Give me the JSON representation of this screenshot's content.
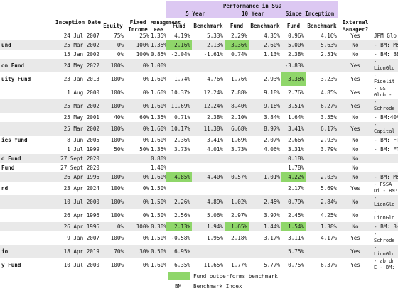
{
  "header": {
    "performance_title": "Performance in SGD",
    "periods": [
      "5 Year",
      "10 Year",
      "Since Inception"
    ],
    "columns": {
      "inception": "Inception Date",
      "equity": "Equity",
      "fixed_income": "Fixed Income",
      "mgmt_fee": "Management Fee",
      "fund": "Fund",
      "benchmark": "Benchmark",
      "external": "External Manager?"
    }
  },
  "rows": [
    {
      "name": "",
      "date": "24 Jul 2007",
      "eq": "75%",
      "fi": "25%",
      "fee": "1.35%",
      "f5": "4.19%",
      "b5": "5.33%",
      "f10": "2.29%",
      "b10": "4.35%",
      "fs": "0.96%",
      "bs": "4.16%",
      "ext": "Yes",
      "bm": "JPM Glo"
    },
    {
      "name": "und",
      "date": "25 Mar 2002",
      "eq": "0%",
      "fi": "100%",
      "fee": "1.35%",
      "f5": "2.16%",
      "b5": "2.13%",
      "f10": "3.36%",
      "b10": "2.60%",
      "fs": "5.00%",
      "bs": "5.63%",
      "ext": "No",
      "bm": "- BM: MSC"
    },
    {
      "name": "",
      "date": "15 Jan 2002",
      "eq": "0%",
      "fi": "100%",
      "fee": "0.85%",
      "f5": "-2.04%",
      "b5": "-1.61%",
      "f10": "0.74%",
      "b10": "1.13%",
      "fs": "2.38%",
      "bs": "2.51%",
      "ext": "No",
      "bm": "- BM: BB"
    },
    {
      "name": "on Fund",
      "date": "24 May 2022",
      "eq": "100%",
      "fi": "0%",
      "fee": "1.00%",
      "f5": "",
      "b5": "",
      "f10": "",
      "b10": "",
      "fs": "-3.83%",
      "bs": "",
      "ext": "Yes",
      "bm": "- LionGlo Innovatio"
    },
    {
      "name": "uity Fund",
      "date": "23 Jan 2013",
      "eq": "100%",
      "fi": "0%",
      "fee": "1.60%",
      "f5": "1.74%",
      "b5": "4.76%",
      "f10": "1.76%",
      "b10": "2.93%",
      "fs": "3.38%",
      "bs": "3.23%",
      "ext": "Yes",
      "bm": "- Fidelit - BM: MSC"
    },
    {
      "name": "",
      "date": "1 Aug 2000",
      "eq": "100%",
      "fi": "0%",
      "fee": "1.60%",
      "f5": "10.37%",
      "b5": "12.24%",
      "f10": "7.88%",
      "b10": "9.18%",
      "fs": "2.76%",
      "bs": "4.85%",
      "ext": "Yes",
      "bm": "- GS Glob - BM: MSC"
    },
    {
      "name": "",
      "date": "25 Mar 2002",
      "eq": "100%",
      "fi": "0%",
      "fee": "1.60%",
      "f5": "11.69%",
      "b5": "12.24%",
      "f10": "8.40%",
      "b10": "9.18%",
      "fs": "3.51%",
      "bs": "6.27%",
      "ext": "Yes",
      "bm": "- Schrode - BM: MSC"
    },
    {
      "name": "",
      "date": "25 May 2001",
      "eq": "40%",
      "fi": "60%",
      "fee": "1.35%",
      "f5": "0.71%",
      "b5": "2.38%",
      "f10": "2.10%",
      "b10": "3.84%",
      "fs": "1.64%",
      "bs": "3.55%",
      "ext": "No",
      "bm": "- BM:40%"
    },
    {
      "name": "",
      "date": "25 Mar 2002",
      "eq": "100%",
      "fi": "0%",
      "fee": "1.60%",
      "f5": "10.17%",
      "b5": "11.38%",
      "f10": "6.68%",
      "b10": "8.97%",
      "fs": "3.41%",
      "bs": "6.17%",
      "ext": "Yes",
      "bm": "- Capital - MSCI AC"
    },
    {
      "name": "ies fund",
      "date": "8 Jun 2005",
      "eq": "100%",
      "fi": "0%",
      "fee": "1.60%",
      "f5": "2.36%",
      "b5": "3.41%",
      "f10": "1.69%",
      "b10": "2.07%",
      "fs": "2.66%",
      "bs": "2.93%",
      "ext": "No",
      "bm": "- BM: FTS"
    },
    {
      "name": "",
      "date": "1 Jul 1999",
      "eq": "50%",
      "fi": "50%",
      "fee": "1.35%",
      "f5": "3.73%",
      "b5": "4.01%",
      "f10": "3.73%",
      "b10": "4.06%",
      "fs": "3.31%",
      "bs": "3.79%",
      "ext": "No",
      "bm": "- BM: FTS"
    },
    {
      "name": "d Fund",
      "date": "27 Sept 2020",
      "eq": "",
      "fi": "",
      "fee": "0.80%",
      "f5": "",
      "b5": "",
      "f10": "",
      "b10": "",
      "fs": "0.18%",
      "bs": "",
      "ext": "No",
      "bm": ""
    },
    {
      "name": "Fund",
      "date": "27 Sept 2020",
      "eq": "",
      "fi": "",
      "fee": "1.40%",
      "f5": "",
      "b5": "",
      "f10": "",
      "b10": "",
      "fs": "1.78%",
      "bs": "",
      "ext": "No",
      "bm": ""
    },
    {
      "name": "",
      "date": "26 Apr 1996",
      "eq": "100%",
      "fi": "0%",
      "fee": "1.60%",
      "f5": "4.85%",
      "b5": "4.40%",
      "f10": "0.57%",
      "b10": "1.01%",
      "fs": "4.22%",
      "bs": "2.03%",
      "ext": "No",
      "bm": "- BM: MSC"
    },
    {
      "name": "nd",
      "date": "23 Apr 2024",
      "eq": "100%",
      "fi": "0%",
      "fee": "1.50%",
      "f5": "",
      "b5": "",
      "f10": "",
      "b10": "",
      "fs": "2.17%",
      "bs": "5.69%",
      "ext": "Yes",
      "bm": "- FSSA Di - BM: MSC"
    },
    {
      "name": "",
      "date": "10 Jul 2000",
      "eq": "100%",
      "fi": "0%",
      "fee": "1.50%",
      "f5": "2.26%",
      "b5": "4.89%",
      "f10": "1.02%",
      "b10": "2.45%",
      "fs": "0.79%",
      "bs": "2.84%",
      "ext": "No",
      "bm": "- LionGlo - MSCI AC"
    },
    {
      "name": "",
      "date": "26 Apr 1996",
      "eq": "100%",
      "fi": "0%",
      "fee": "1.50%",
      "f5": "2.56%",
      "b5": "5.06%",
      "f10": "2.97%",
      "b10": "3.97%",
      "fs": "2.45%",
      "bs": "4.25%",
      "ext": "No",
      "bm": "- LionGlo - MSCI AC"
    },
    {
      "name": "",
      "date": "26 Apr 1996",
      "eq": "0%",
      "fi": "100%",
      "fee": "0.30%",
      "f5": "2.13%",
      "b5": "1.94%",
      "f10": "1.65%",
      "b10": "1.44%",
      "fs": "1.54%",
      "bs": "1.38%",
      "ext": "No",
      "bm": "- BM: 3-M"
    },
    {
      "name": "",
      "date": "9 Jan 2007",
      "eq": "100%",
      "fi": "0%",
      "fee": "1.50%",
      "f5": "-0.58%",
      "b5": "1.95%",
      "f10": "2.18%",
      "b10": "3.17%",
      "fs": "3.11%",
      "bs": "4.17%",
      "ext": "Yes",
      "bm": "- Schrode - MSCI Go"
    },
    {
      "name": "io",
      "date": "18 Apr 2019",
      "eq": "70%",
      "fi": "30%",
      "fee": "0.50%",
      "f5": "6.95%",
      "b5": "",
      "f10": "",
      "b10": "",
      "fs": "5.75%",
      "bs": "",
      "ext": "Yes",
      "bm": "- LionGlo - Fund of"
    },
    {
      "name": "y Fund",
      "date": "10 Jul 2000",
      "eq": "100%",
      "fi": "0%",
      "fee": "1.60%",
      "f5": "6.35%",
      "b5": "11.65%",
      "f10": "1.77%",
      "b10": "5.77%",
      "fs": "0.75%",
      "bs": "6.37%",
      "ext": "Yes",
      "bm": "- abrdn E - BM: FTS"
    }
  ],
  "legend": {
    "swatch_label": "Fund outperforms benchmark",
    "bm_abbr": "BM",
    "bm_label": "Benchmark Index"
  },
  "colors": {
    "highlight": "#8fd66a",
    "header_band": "#dcc8f2",
    "alt_row": "#e9e9e9"
  }
}
